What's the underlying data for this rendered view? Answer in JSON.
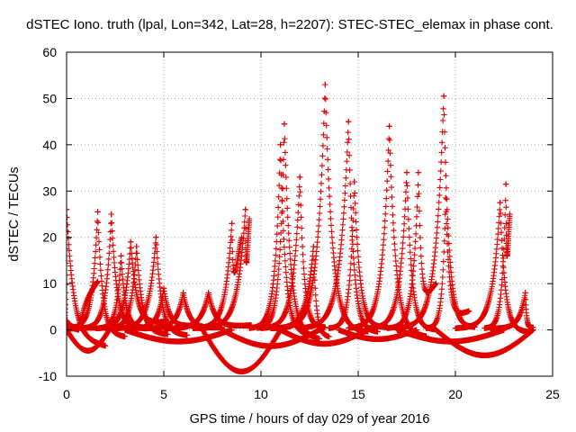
{
  "chart_data": {
    "type": "scatter",
    "title": "dSTEC Iono. truth (lpal, Lon=342, Lat=28, h=2207): STEC-STEC_elemax in phase cont.",
    "xlabel": "GPS time / hours of day 029 of year 2016",
    "ylabel": "dSTEC  / TECUs",
    "xlim": [
      0,
      25
    ],
    "ylim": [
      -10,
      60
    ],
    "x_ticks": [
      "0",
      "5",
      "10",
      "15",
      "20",
      "25"
    ],
    "y_ticks": [
      "-10",
      "0",
      "10",
      "20",
      "30",
      "40",
      "50",
      "60"
    ],
    "grid": true,
    "marker": "+",
    "color": "#e00000",
    "passes": [
      {
        "t0": -0.2,
        "tpeak": 0.0,
        "t1": 2.0,
        "peak": 26,
        "end": -3.5
      },
      {
        "t0": -0.2,
        "tpeak": 0.0,
        "t1": 1.5,
        "peak": 2,
        "end": 0.5
      },
      {
        "t0": -0.1,
        "tpeak": 0.6,
        "t1": 1.6,
        "peak": 0,
        "end": 10.5
      },
      {
        "t0": 0.0,
        "tpeak": 1.6,
        "t1": 3.0,
        "peak": 25.5,
        "end": -1.5
      },
      {
        "t0": 0.7,
        "tpeak": 2.3,
        "t1": 4.0,
        "peak": 25,
        "end": 0.3
      },
      {
        "t0": 1.5,
        "tpeak": 2.8,
        "t1": 4.2,
        "peak": 16,
        "end": 0.5
      },
      {
        "t0": 1.5,
        "tpeak": 3.3,
        "t1": 5.2,
        "peak": 19,
        "end": 1.8
      },
      {
        "t0": 2.0,
        "tpeak": 3.6,
        "t1": 5.2,
        "peak": 18,
        "end": -1.0
      },
      {
        "t0": 2.5,
        "tpeak": 4.6,
        "t1": 6.2,
        "peak": 20,
        "end": -1.2
      },
      {
        "t0": 3.2,
        "tpeak": 5.0,
        "t1": 6.8,
        "peak": 9,
        "end": 1.0
      },
      {
        "t0": 4.0,
        "tpeak": 6.0,
        "t1": 8.0,
        "peak": 8,
        "end": 0.5
      },
      {
        "t0": 5.0,
        "tpeak": 7.3,
        "t1": 9.5,
        "peak": 8,
        "end": 1.0
      },
      {
        "t0": 6.5,
        "tpeak": 8.5,
        "t1": 9.0,
        "peak": 23,
        "end": 20.0
      },
      {
        "t0": 6.8,
        "tpeak": 9.2,
        "t1": 9.4,
        "peak": 26,
        "end": 24.0
      },
      {
        "t0": 9.4,
        "tpeak": 11.0,
        "t1": 12.5,
        "peak": 40,
        "end": -1.0
      },
      {
        "t0": 9.8,
        "tpeak": 11.2,
        "t1": 13.0,
        "peak": 44.5,
        "end": -2.0
      },
      {
        "t0": 10.0,
        "tpeak": 12.0,
        "t1": 13.3,
        "peak": 33,
        "end": 0.5
      },
      {
        "t0": 10.5,
        "tpeak": 12.7,
        "t1": 13.5,
        "peak": 18,
        "end": -1.5
      },
      {
        "t0": 11.0,
        "tpeak": 13.3,
        "t1": 15.5,
        "peak": 53,
        "end": -0.5
      },
      {
        "t0": 12.0,
        "tpeak": 14.5,
        "t1": 16.0,
        "peak": 45,
        "end": -0.5
      },
      {
        "t0": 13.5,
        "tpeak": 14.8,
        "t1": 16.5,
        "peak": 32,
        "end": 0.5
      },
      {
        "t0": 14.5,
        "tpeak": 16.6,
        "t1": 18.5,
        "peak": 44,
        "end": -1.5
      },
      {
        "t0": 15.5,
        "tpeak": 17.5,
        "t1": 19.0,
        "peak": 34,
        "end": 0.0
      },
      {
        "t0": 16.5,
        "tpeak": 18.1,
        "t1": 19.0,
        "peak": 34,
        "end": 10.0
      },
      {
        "t0": 17.0,
        "tpeak": 19.4,
        "t1": 21.0,
        "peak": 50.5,
        "end": 0.5
      },
      {
        "t0": 18.5,
        "tpeak": 19.5,
        "t1": 20.7,
        "peak": 28.5,
        "end": 4.0
      },
      {
        "t0": 20.0,
        "tpeak": 22.3,
        "t1": 23.8,
        "peak": 27.5,
        "end": -0.5
      },
      {
        "t0": 21.5,
        "tpeak": 22.6,
        "t1": 22.8,
        "peak": 31.5,
        "end": 25.0
      },
      {
        "t0": 21.8,
        "tpeak": 23.6,
        "t1": 24.0,
        "peak": 8,
        "end": 0.5
      }
    ],
    "background_arcs": [
      {
        "t0": 0.0,
        "t1": 2.2,
        "min": -4.5
      },
      {
        "t0": 3.0,
        "t1": 8.5,
        "min": -2.5
      },
      {
        "t0": 7.0,
        "t1": 11.0,
        "min": -9.0
      },
      {
        "t0": 8.0,
        "t1": 13.0,
        "min": -3.5
      },
      {
        "t0": 11.0,
        "t1": 15.5,
        "min": -3.0
      },
      {
        "t0": 14.0,
        "t1": 18.0,
        "min": -2.0
      },
      {
        "t0": 17.0,
        "t1": 22.5,
        "min": -2.5
      },
      {
        "t0": 19.0,
        "t1": 24.0,
        "min": -5.5
      }
    ]
  }
}
